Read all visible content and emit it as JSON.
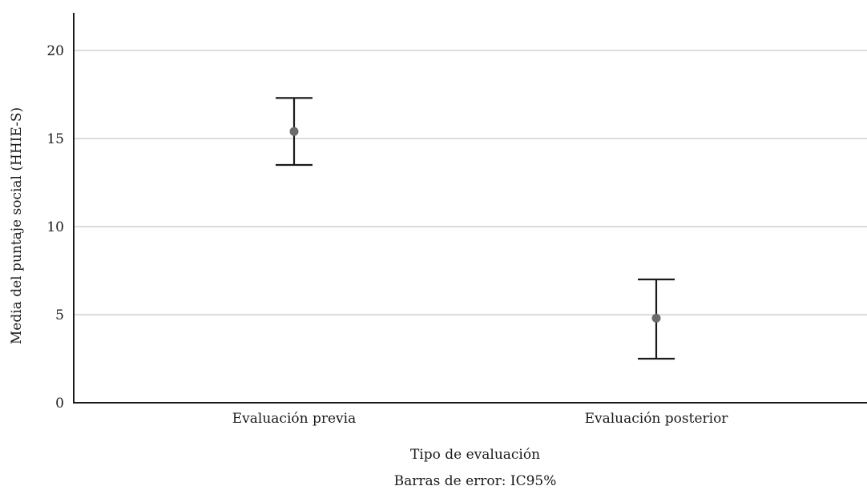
{
  "chart_data": {
    "type": "scatter",
    "subtype": "error-bar",
    "categories": [
      "Evaluación previa",
      "Evaluación posterior"
    ],
    "series": [
      {
        "values": [
          15.4,
          4.8
        ],
        "ci_lower": [
          13.5,
          2.5
        ],
        "ci_upper": [
          17.3,
          7.0
        ]
      }
    ],
    "xlabel": "Tipo de evaluación",
    "ylabel": "Media del puntaje social (HHIE-S)",
    "footnote": "Barras de error: IC95%",
    "ylim": [
      0,
      22
    ],
    "yticks": [
      "0",
      "5",
      "10",
      "15",
      "20"
    ],
    "grid": true,
    "colors": {
      "point": "#6b6b6b",
      "bar": "#1a1a1a",
      "grid": "#b8b8b8"
    }
  }
}
